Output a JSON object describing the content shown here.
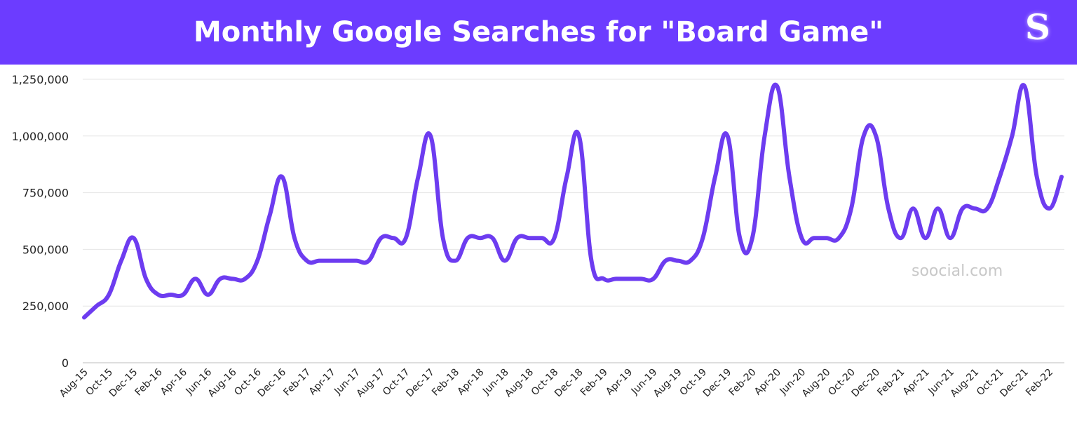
{
  "header": {
    "title": "Monthly Google Searches for \"Board Game\"",
    "logo": "S"
  },
  "watermark": "soocial.com",
  "colors": {
    "header_bg": "#6c3cff",
    "line": "#6d3cf0",
    "grid": "#e6e6e6"
  },
  "chart_data": {
    "type": "line",
    "title": "Monthly Google Searches for \"Board Game\"",
    "xlabel": "",
    "ylabel": "",
    "ylim": [
      0,
      1250000
    ],
    "y_ticks": [
      0,
      250000,
      500000,
      750000,
      1000000,
      1250000
    ],
    "y_tick_labels": [
      "0",
      "250,000",
      "500,000",
      "750,000",
      "1,000,000",
      "1,250,000"
    ],
    "grid": true,
    "x": [
      "Aug-15",
      "Sep-15",
      "Oct-15",
      "Nov-15",
      "Dec-15",
      "Jan-16",
      "Feb-16",
      "Mar-16",
      "Apr-16",
      "May-16",
      "Jun-16",
      "Jul-16",
      "Aug-16",
      "Sep-16",
      "Oct-16",
      "Nov-16",
      "Dec-16",
      "Jan-17",
      "Feb-17",
      "Mar-17",
      "Apr-17",
      "May-17",
      "Jun-17",
      "Jul-17",
      "Aug-17",
      "Sep-17",
      "Oct-17",
      "Nov-17",
      "Dec-17",
      "Jan-18",
      "Feb-18",
      "Mar-18",
      "Apr-18",
      "May-18",
      "Jun-18",
      "Jul-18",
      "Aug-18",
      "Sep-18",
      "Oct-18",
      "Nov-18",
      "Dec-18",
      "Jan-19",
      "Feb-19",
      "Mar-19",
      "Apr-19",
      "May-19",
      "Jun-19",
      "Jul-19",
      "Aug-19",
      "Sep-19",
      "Oct-19",
      "Nov-19",
      "Dec-19",
      "Jan-20",
      "Feb-20",
      "Mar-20",
      "Apr-20",
      "May-20",
      "Jun-20",
      "Jul-20",
      "Aug-20",
      "Sep-20",
      "Oct-20",
      "Nov-20",
      "Dec-20",
      "Jan-21",
      "Feb-21",
      "Mar-21",
      "Apr-21",
      "May-21",
      "Jun-21",
      "Jul-21",
      "Aug-21",
      "Sep-21",
      "Oct-21",
      "Nov-21",
      "Dec-21",
      "Jan-22",
      "Feb-22",
      "Mar-22"
    ],
    "x_tick_labels": [
      "Aug-15",
      "Oct-15",
      "Dec-15",
      "Feb-16",
      "Apr-16",
      "Jun-16",
      "Aug-16",
      "Oct-16",
      "Dec-16",
      "Feb-17",
      "Apr-17",
      "Jun-17",
      "Aug-17",
      "Oct-17",
      "Dec-17",
      "Feb-18",
      "Apr-18",
      "Jun-18",
      "Aug-18",
      "Oct-18",
      "Dec-18",
      "Feb-19",
      "Apr-19",
      "Jun-19",
      "Aug-19",
      "Oct-19",
      "Dec-19",
      "Feb-20",
      "Apr-20",
      "Jun-20",
      "Aug-20",
      "Oct-20",
      "Dec-20",
      "Feb-21",
      "Apr-21",
      "Jun-21",
      "Aug-21",
      "Oct-21",
      "Dec-21",
      "Feb-22"
    ],
    "series": [
      {
        "values": [
          200000,
          250000,
          300000,
          450000,
          550000,
          370000,
          300000,
          300000,
          300000,
          370000,
          300000,
          370000,
          370000,
          370000,
          450000,
          650000,
          820000,
          550000,
          450000,
          450000,
          450000,
          450000,
          450000,
          450000,
          550000,
          550000,
          550000,
          820000,
          1000000,
          550000,
          450000,
          550000,
          550000,
          550000,
          450000,
          550000,
          550000,
          550000,
          550000,
          820000,
          1000000,
          450000,
          370000,
          370000,
          370000,
          370000,
          370000,
          450000,
          450000,
          450000,
          550000,
          820000,
          1000000,
          550000,
          550000,
          1000000,
          1220000,
          820000,
          550000,
          550000,
          550000,
          550000,
          680000,
          1000000,
          1000000,
          680000,
          550000,
          680000,
          550000,
          680000,
          550000,
          680000,
          680000,
          680000,
          820000,
          1000000,
          1220000,
          820000,
          680000,
          820000
        ]
      }
    ]
  }
}
